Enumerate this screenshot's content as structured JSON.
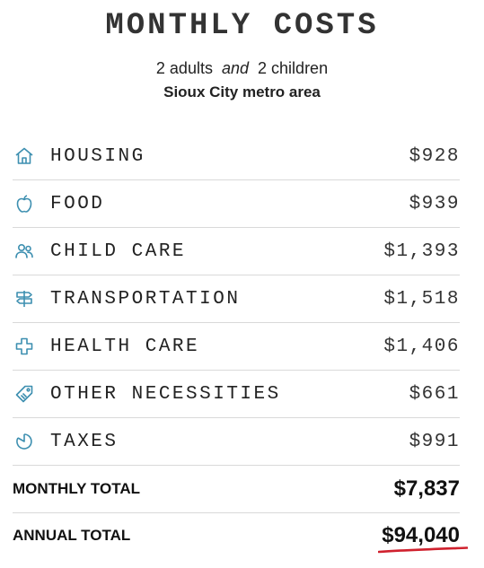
{
  "header": {
    "title": "MONTHLY COSTS",
    "adults": "2 adults",
    "and": "and",
    "children": "2 children",
    "location": "Sioux City metro area"
  },
  "costs": [
    {
      "label": "HOUSING",
      "amount": "$928",
      "icon": "house-icon"
    },
    {
      "label": "FOOD",
      "amount": "$939",
      "icon": "apple-icon"
    },
    {
      "label": "CHILD CARE",
      "amount": "$1,393",
      "icon": "people-icon"
    },
    {
      "label": "TRANSPORTATION",
      "amount": "$1,518",
      "icon": "signpost-icon"
    },
    {
      "label": "HEALTH CARE",
      "amount": "$1,406",
      "icon": "medical-cross-icon"
    },
    {
      "label": "OTHER NECESSITIES",
      "amount": "$661",
      "icon": "tag-icon"
    },
    {
      "label": "TAXES",
      "amount": "$991",
      "icon": "pie-icon"
    }
  ],
  "totals": {
    "monthly_label": "MONTHLY TOTAL",
    "monthly_amount": "$7,837",
    "annual_label": "ANNUAL TOTAL",
    "annual_amount": "$94,040"
  },
  "colors": {
    "icon": "#3d8fb0",
    "underline": "#d0212e"
  }
}
